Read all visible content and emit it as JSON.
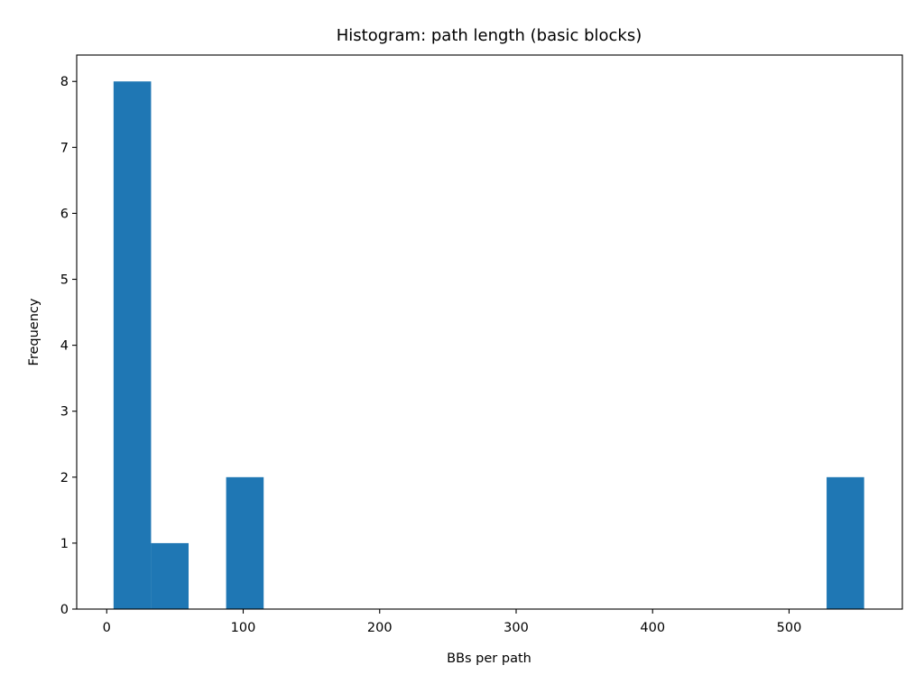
{
  "chart_data": {
    "type": "bar",
    "title": "Histogram: path length (basic blocks)",
    "xlabel": "BBs per path",
    "ylabel": "Frequency",
    "xlim": [
      -22,
      583
    ],
    "ylim": [
      0,
      8.4
    ],
    "xticks": [
      0,
      100,
      200,
      300,
      400,
      500
    ],
    "yticks": [
      0,
      1,
      2,
      3,
      4,
      5,
      6,
      7,
      8
    ],
    "grid": false,
    "bin_edges": [
      5,
      32.5,
      60,
      87.5,
      115,
      142.5,
      170,
      197.5,
      225,
      252.5,
      280,
      307.5,
      335,
      362.5,
      390,
      417.5,
      445,
      472.5,
      500,
      527.5,
      555
    ],
    "counts": [
      8,
      1,
      0,
      2,
      0,
      0,
      0,
      0,
      0,
      0,
      0,
      0,
      0,
      0,
      0,
      0,
      0,
      0,
      0,
      2
    ],
    "colors": {
      "bar": "#1f77b4"
    }
  }
}
